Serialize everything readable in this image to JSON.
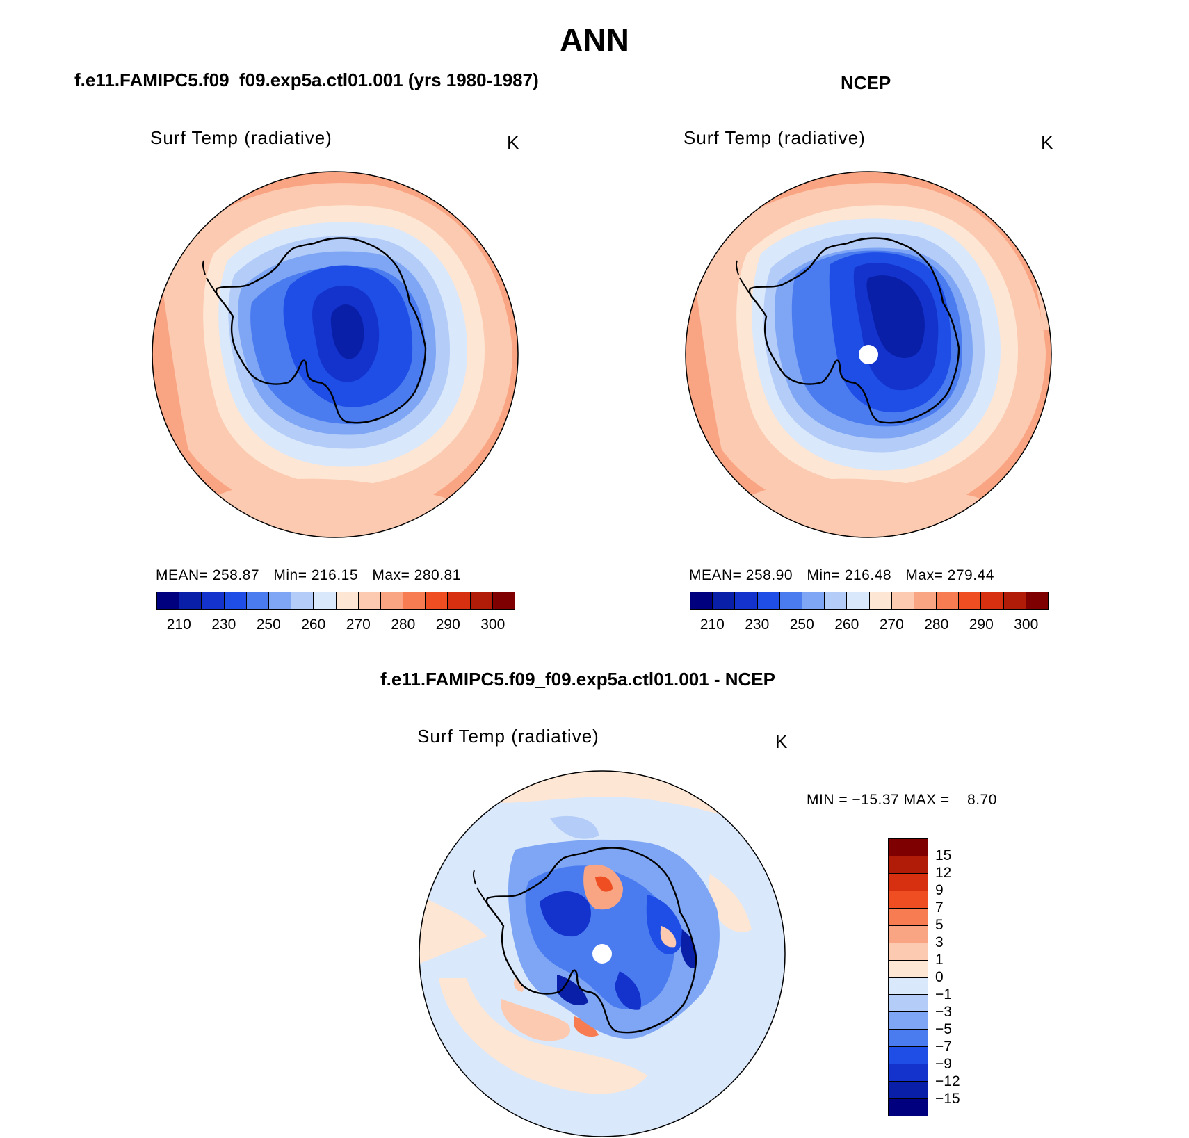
{
  "figure": {
    "title": "ANN"
  },
  "panels": {
    "top_left": {
      "title": "f.e11.FAMIPC5.f09_f09.exp5a.ctl01.001 (yrs 1980-1987)",
      "variable": "Surf Temp (radiative)",
      "units": "K",
      "stats": {
        "mean_label": "MEAN=",
        "mean": "258.87",
        "min_label": "Min=",
        "min": "216.15",
        "max_label": "Max=",
        "max": "280.81"
      }
    },
    "top_right": {
      "title": "NCEP",
      "variable": "Surf Temp (radiative)",
      "units": "K",
      "stats": {
        "mean_label": "MEAN=",
        "mean": "258.90",
        "min_label": "Min=",
        "min": "216.48",
        "max_label": "Max=",
        "max": "279.44"
      }
    },
    "bottom": {
      "title": "f.e11.FAMIPC5.f09_f09.exp5a.ctl01.001 - NCEP",
      "variable": "Surf Temp (radiative)",
      "units": "K",
      "minmax_text": "MIN = −15.37 MAX =    8.70"
    }
  },
  "colorbars": {
    "absolute": {
      "labels": [
        "210",
        "230",
        "250",
        "260",
        "270",
        "280",
        "290",
        "300"
      ],
      "colors": [
        "#00007f",
        "#0a1fa8",
        "#1432cc",
        "#1e4ee6",
        "#4a7cf0",
        "#7ea6f4",
        "#b4ccf8",
        "#dae8fb",
        "#fde6d4",
        "#fccab0",
        "#f9a583",
        "#f77c52",
        "#ee4e22",
        "#d63010",
        "#b01c08",
        "#7f0000"
      ]
    },
    "difference": {
      "labels": [
        "15",
        "12",
        "9",
        "7",
        "5",
        "3",
        "1",
        "0",
        "−1",
        "−3",
        "−5",
        "−7",
        "−9",
        "−12",
        "−15"
      ],
      "colors_top_to_bottom": [
        "#7f0000",
        "#b01c08",
        "#d63010",
        "#ee4e22",
        "#f77c52",
        "#f9a583",
        "#fccab0",
        "#fde6d4",
        "#dae8fb",
        "#b4ccf8",
        "#7ea6f4",
        "#4a7cf0",
        "#1e4ee6",
        "#1432cc",
        "#0a1fa8",
        "#00007f"
      ]
    }
  }
}
